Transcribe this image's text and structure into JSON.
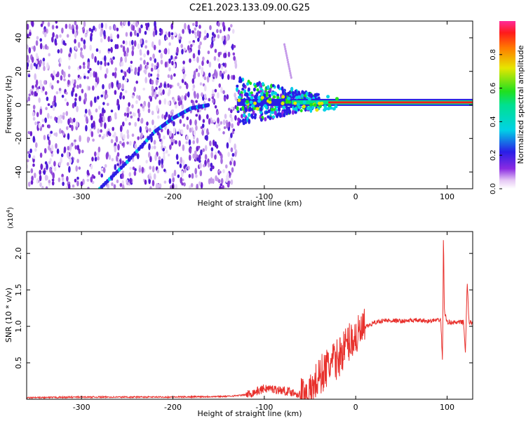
{
  "title": "C2E1.2023.133.09.00.G25",
  "chart_data": [
    {
      "type": "heatmap",
      "name": "spectrogram",
      "xlabel": "Height of straight line (km)",
      "ylabel": "Frequency (Hz)",
      "xlim": [
        -360,
        128
      ],
      "ylim": [
        -50,
        50
      ],
      "xticks": [
        -300,
        -200,
        -100,
        0,
        100
      ],
      "xtick_labels": [
        "-300",
        "-200",
        "-100",
        "0",
        "100"
      ],
      "yticks": [
        -40,
        -20,
        0,
        20,
        40
      ],
      "ytick_labels": [
        "-40",
        "-20",
        "0",
        "20",
        "40"
      ],
      "colorbar": {
        "label": "Normalized spectral amplitude",
        "range": [
          0,
          1
        ],
        "ticks": [
          0.0,
          0.2,
          0.4,
          0.6,
          0.8
        ],
        "tick_labels": [
          "0.0",
          "0.2",
          "0.4",
          "0.6",
          "0.8"
        ]
      },
      "features": {
        "noise_region_x": [
          -360,
          -130
        ],
        "chirp_track": [
          [
            -280,
            -50
          ],
          [
            -250,
            -34
          ],
          [
            -220,
            -16
          ],
          [
            -200,
            -8
          ],
          [
            -180,
            -2
          ],
          [
            -160,
            0
          ]
        ],
        "carrier_line": {
          "x": [
            -130,
            128
          ],
          "y": 1.5
        },
        "secondary_streak": [
          [
            -78,
            36
          ],
          [
            -70,
            15
          ]
        ]
      }
    },
    {
      "type": "line",
      "name": "snr",
      "xlabel": "Height of straight line (km)",
      "ylabel": "SNR (10 * v/v)",
      "ylabel_scale": "(x10",
      "ylabel_exponent": "4",
      "ylabel_close": ")",
      "xlim": [
        -360,
        128
      ],
      "ylim": [
        0,
        2.3
      ],
      "xticks": [
        -300,
        -200,
        -100,
        0,
        100
      ],
      "xtick_labels": [
        "-300",
        "-200",
        "-100",
        "0",
        "100"
      ],
      "yticks": [
        0.5,
        1.0,
        1.5,
        2.0
      ],
      "ytick_labels": [
        "0.5",
        "1.0",
        "1.5",
        "2.0"
      ],
      "color": "#e8302c",
      "series": [
        {
          "x": [
            -360,
            -300,
            -200,
            -140,
            -120,
            -105,
            -100,
            -90,
            -80,
            -70,
            -60,
            -50,
            -45,
            -40,
            -35,
            -30,
            -25,
            -20,
            -15,
            -10,
            -5,
            0,
            5,
            10,
            20,
            30,
            40,
            50,
            60,
            70,
            80,
            85,
            90,
            93,
            95,
            96,
            97,
            100,
            110,
            118,
            120,
            122,
            124,
            128
          ],
          "y": [
            0.02,
            0.03,
            0.03,
            0.04,
            0.06,
            0.12,
            0.15,
            0.14,
            0.12,
            0.1,
            0.06,
            0.05,
            0.2,
            0.3,
            0.38,
            0.45,
            0.5,
            0.55,
            0.65,
            0.75,
            0.82,
            0.85,
            0.9,
            0.98,
            1.05,
            1.08,
            1.08,
            1.07,
            1.08,
            1.08,
            1.07,
            1.08,
            1.08,
            1.1,
            0.5,
            2.3,
            1.2,
            1.06,
            1.05,
            1.06,
            0.65,
            1.6,
            1.05,
            1.05
          ]
        }
      ]
    }
  ]
}
